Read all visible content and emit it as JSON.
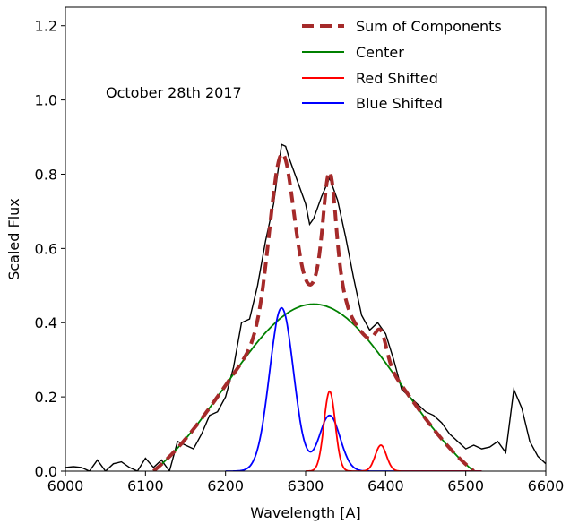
{
  "chart_data": {
    "type": "line",
    "title": "",
    "annotation": "October 28th 2017",
    "xlabel": "Wavelength [A]",
    "ylabel": "Scaled Flux",
    "xlim": [
      6000,
      6600
    ],
    "ylim": [
      0,
      1.25
    ],
    "x_ticks": [
      6000,
      6100,
      6200,
      6300,
      6400,
      6500,
      6600
    ],
    "y_ticks": [
      0.0,
      0.2,
      0.4,
      0.6,
      0.8,
      1.0,
      1.2
    ],
    "x_tick_labels": [
      "6000",
      "6100",
      "6200",
      "6300",
      "6400",
      "6500",
      "6600"
    ],
    "y_tick_labels": [
      "0.0",
      "0.2",
      "0.4",
      "0.6",
      "0.8",
      "1.0",
      "1.2"
    ],
    "grid": false,
    "legend_position": "top-right",
    "legend": [
      {
        "key": "sum",
        "label": "Sum of Components",
        "color": "#a52a2a",
        "dashed": true
      },
      {
        "key": "center",
        "label": "Center",
        "color": "#008000",
        "dashed": false
      },
      {
        "key": "red",
        "label": "Red Shifted",
        "color": "#ff0000",
        "dashed": false
      },
      {
        "key": "blue",
        "label": "Blue Shifted",
        "color": "#0000ff",
        "dashed": false
      }
    ],
    "observed": {
      "color": "#000000",
      "x": [
        6000,
        6010,
        6020,
        6030,
        6040,
        6050,
        6060,
        6070,
        6080,
        6090,
        6100,
        6110,
        6120,
        6130,
        6140,
        6150,
        6160,
        6170,
        6180,
        6190,
        6200,
        6210,
        6220,
        6230,
        6240,
        6250,
        6260,
        6265,
        6270,
        6275,
        6280,
        6290,
        6300,
        6305,
        6310,
        6320,
        6330,
        6340,
        6350,
        6360,
        6370,
        6380,
        6390,
        6400,
        6410,
        6420,
        6430,
        6440,
        6450,
        6460,
        6470,
        6480,
        6490,
        6500,
        6510,
        6520,
        6530,
        6540,
        6550,
        6560,
        6570,
        6580,
        6590,
        6600
      ],
      "y": [
        0.01,
        0.012,
        0.01,
        0.0,
        0.03,
        0.0,
        0.02,
        0.025,
        0.01,
        0.0,
        0.035,
        0.01,
        0.03,
        0.0,
        0.08,
        0.07,
        0.06,
        0.1,
        0.15,
        0.16,
        0.2,
        0.28,
        0.4,
        0.41,
        0.5,
        0.62,
        0.72,
        0.8,
        0.88,
        0.875,
        0.84,
        0.78,
        0.72,
        0.665,
        0.68,
        0.74,
        0.79,
        0.73,
        0.63,
        0.52,
        0.42,
        0.38,
        0.4,
        0.37,
        0.3,
        0.22,
        0.2,
        0.18,
        0.16,
        0.15,
        0.13,
        0.1,
        0.08,
        0.06,
        0.07,
        0.06,
        0.065,
        0.08,
        0.05,
        0.22,
        0.17,
        0.08,
        0.04,
        0.02
      ]
    },
    "components": {
      "center": {
        "amplitude": 0.45,
        "mean": 6310,
        "sigma": 110,
        "min_x": 6110,
        "max_x": 6510
      },
      "blue": {
        "amplitude": 0.44,
        "mean": 6270,
        "sigma": 15
      },
      "blue_secondary": {
        "amplitude": 0.15,
        "mean": 6330,
        "sigma": 13
      },
      "red": {
        "amplitude": 0.215,
        "mean": 6330,
        "sigma": 7
      },
      "red_secondary": {
        "amplitude": 0.07,
        "mean": 6394,
        "sigma": 7
      }
    }
  }
}
